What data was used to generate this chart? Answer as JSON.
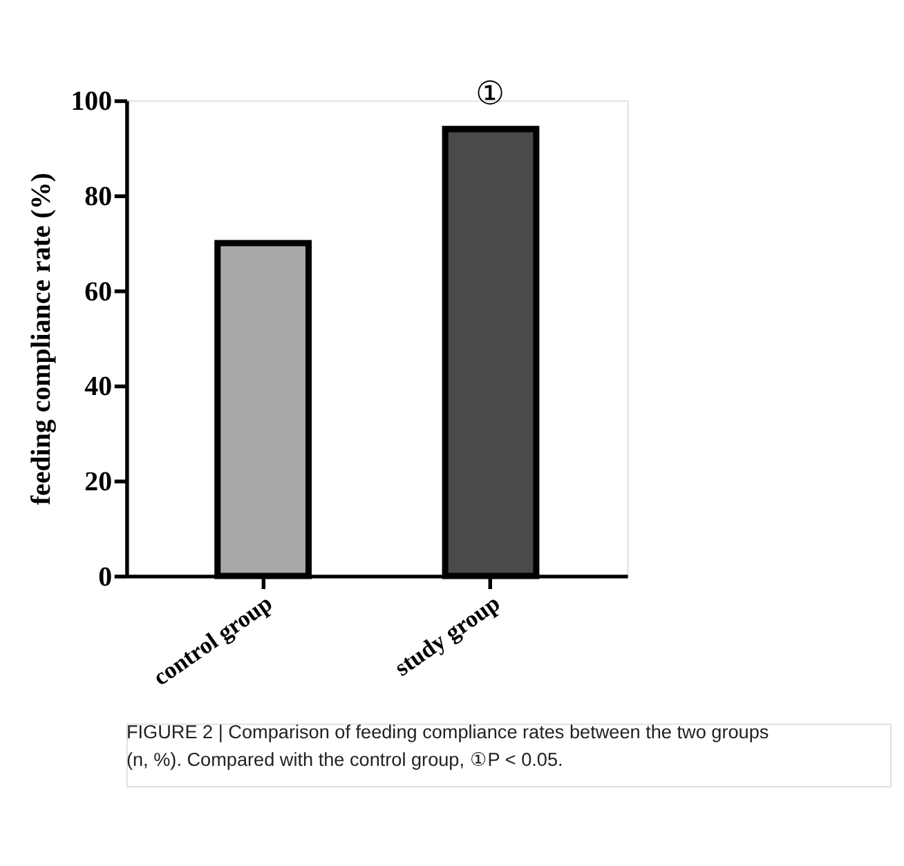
{
  "chart_data": {
    "type": "bar",
    "categories": [
      "control group",
      "study group"
    ],
    "values": [
      70,
      94
    ],
    "colors": [
      "#a8a8a8",
      "#4a4a4a"
    ],
    "ylabel": "feeding compliance rate (%)",
    "ylim": [
      0,
      100
    ],
    "yticks": [
      0,
      20,
      40,
      60,
      80,
      100
    ],
    "grid": false,
    "annotations": [
      {
        "text": "①",
        "x": "study group",
        "y": 94
      },
      "FIGURE 2 | Comparison of feeding compliance rates between the two groups (n, %). Compared with the control group, ①P < 0.05."
    ]
  }
}
